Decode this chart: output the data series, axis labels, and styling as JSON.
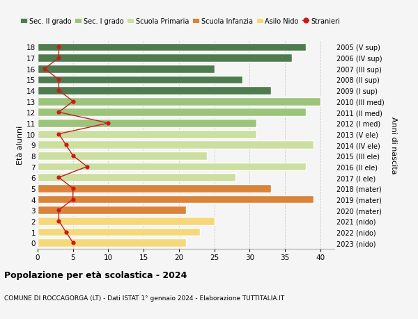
{
  "ages": [
    0,
    1,
    2,
    3,
    4,
    5,
    6,
    7,
    8,
    9,
    10,
    11,
    12,
    13,
    14,
    15,
    16,
    17,
    18
  ],
  "years": [
    "2023 (nido)",
    "2022 (nido)",
    "2021 (nido)",
    "2020 (mater)",
    "2019 (mater)",
    "2018 (mater)",
    "2017 (I ele)",
    "2016 (II ele)",
    "2015 (III ele)",
    "2014 (IV ele)",
    "2013 (V ele)",
    "2012 (I med)",
    "2011 (II med)",
    "2010 (III med)",
    "2009 (I sup)",
    "2008 (II sup)",
    "2007 (III sup)",
    "2006 (IV sup)",
    "2005 (V sup)"
  ],
  "values": [
    21,
    23,
    25,
    21,
    39,
    33,
    28,
    38,
    24,
    39,
    31,
    31,
    38,
    40,
    33,
    29,
    25,
    36,
    38
  ],
  "stranieri": [
    5,
    4,
    3,
    3,
    5,
    5,
    3,
    7,
    5,
    4,
    3,
    10,
    3,
    5,
    3,
    3,
    1,
    3,
    3
  ],
  "bar_colors": [
    "#f5d87a",
    "#f5d87a",
    "#f5d87a",
    "#d9843a",
    "#d9843a",
    "#d9843a",
    "#ccdfa0",
    "#ccdfa0",
    "#ccdfa0",
    "#ccdfa0",
    "#ccdfa0",
    "#9bc47a",
    "#9bc47a",
    "#9bc47a",
    "#4e7c4e",
    "#4e7c4e",
    "#4e7c4e",
    "#4e7c4e",
    "#4e7c4e"
  ],
  "legend_labels": [
    "Sec. II grado",
    "Sec. I grado",
    "Scuola Primaria",
    "Scuola Infanzia",
    "Asilo Nido",
    "Stranieri"
  ],
  "legend_colors": [
    "#4e7c4e",
    "#9bc47a",
    "#ccdfa0",
    "#d9843a",
    "#f5d87a",
    "#cc1a1a"
  ],
  "stranieri_color": "#cc1a1a",
  "title": "Popolazione per età scolastica - 2024",
  "subtitle": "COMUNE DI ROCCAGORGA (LT) - Dati ISTAT 1° gennaio 2024 - Elaborazione TUTTITALIA.IT",
  "ylabel_left": "Età alunni",
  "ylabel_right": "Anni di nascita",
  "xlim": [
    0,
    42
  ],
  "background_color": "#f5f5f5",
  "grid_color": "#cccccc"
}
